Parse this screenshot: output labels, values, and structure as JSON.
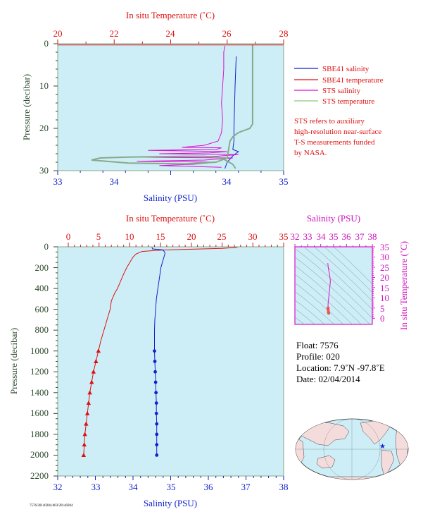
{
  "colors": {
    "red": "#dd1111",
    "blue": "#1122cc",
    "magenta": "#dd11cc",
    "green": "#88cc77",
    "dark_green": "#2e4a2e",
    "panel_bg": "#cdeef7",
    "grey_green": "#88aa88"
  },
  "chart_data": [
    {
      "type": "line",
      "name": "upper-profile",
      "top_axis_label": "In situ Temperature (˚C)",
      "top_ticks": [
        "20",
        "22",
        "24",
        "26",
        "28"
      ],
      "top_range": [
        20,
        28
      ],
      "bottom_axis_label": "Salinity (PSU)",
      "bottom_ticks": [
        "33",
        "34",
        "34",
        "35"
      ],
      "bottom_range": [
        33,
        35
      ],
      "ylabel": "Pressure (decibar)",
      "y_ticks": [
        "0",
        "10",
        "20",
        "30"
      ],
      "ylim": [
        0,
        30
      ],
      "legend": [
        {
          "label": "SBE41 salinity",
          "color": "#1122cc"
        },
        {
          "label": "SBE41 temperature",
          "color": "#dd1111"
        },
        {
          "label": "STS salinity",
          "color": "#dd11cc"
        },
        {
          "label": "STS temperature",
          "color": "#88cc77"
        }
      ],
      "note": [
        "STS refers to auxiliary",
        "high-resolution near-surface",
        "T-S measurements funded",
        "by NASA."
      ],
      "series": [
        {
          "name": "SBE41 salinity",
          "axis": "salinity",
          "points": [
            [
              34.58,
              3
            ],
            [
              34.57,
              10
            ],
            [
              34.56,
              20
            ],
            [
              34.56,
              23
            ],
            [
              34.55,
              25
            ],
            [
              34.6,
              25.5
            ],
            [
              34.55,
              26.5
            ],
            [
              34.5,
              28
            ],
            [
              34.48,
              29.5
            ]
          ]
        },
        {
          "name": "STS salinity",
          "axis": "salinity",
          "points": [
            [
              34.48,
              0.5
            ],
            [
              34.47,
              2
            ],
            [
              34.47,
              6
            ],
            [
              34.46,
              10
            ],
            [
              34.45,
              14
            ],
            [
              34.46,
              18
            ],
            [
              34.45,
              21
            ],
            [
              34.42,
              23
            ],
            [
              34.3,
              24
            ],
            [
              34.1,
              24.5
            ],
            [
              34.45,
              24.6
            ],
            [
              34.4,
              25
            ],
            [
              33.8,
              25.2
            ],
            [
              34.5,
              25.5
            ],
            [
              34.35,
              25.8
            ],
            [
              33.9,
              26
            ],
            [
              34.6,
              26.2
            ],
            [
              34.4,
              26.6
            ],
            [
              33.6,
              26.8
            ],
            [
              34.55,
              27
            ],
            [
              34.3,
              27.5
            ],
            [
              33.7,
              27.8
            ],
            [
              34.4,
              28
            ],
            [
              34.2,
              28.5
            ],
            [
              33.9,
              28.8
            ],
            [
              34.45,
              29.2
            ]
          ]
        },
        {
          "name": "STS temperature",
          "axis": "temperature",
          "points": [
            [
              26.9,
              0.2
            ],
            [
              26.9,
              5
            ],
            [
              26.9,
              10
            ],
            [
              26.9,
              15
            ],
            [
              26.9,
              19
            ],
            [
              26.8,
              20
            ],
            [
              26.4,
              21
            ],
            [
              26.2,
              22
            ],
            [
              26.1,
              23
            ],
            [
              26.05,
              25
            ],
            [
              26.0,
              27
            ],
            [
              25.6,
              28
            ],
            [
              24.5,
              28.4
            ],
            [
              22.5,
              28.2
            ],
            [
              21.2,
              27.5
            ],
            [
              21.5,
              27
            ],
            [
              22.5,
              26.8
            ],
            [
              24.5,
              26.6
            ],
            [
              25.2,
              26.6
            ],
            [
              25.8,
              27
            ],
            [
              26.2,
              28.5
            ],
            [
              26.3,
              29.5
            ]
          ]
        },
        {
          "name": "SBE41 temperature",
          "axis": "temperature",
          "points": [
            [
              20,
              0.3
            ],
            [
              28,
              0.3
            ]
          ]
        }
      ]
    },
    {
      "type": "line",
      "name": "main-profile",
      "top_axis_label": "In situ Temperature (˚C)",
      "top_ticks": [
        "0",
        "5",
        "10",
        "15",
        "20",
        "25",
        "30",
        "35"
      ],
      "top_range": [
        0,
        35
      ],
      "bottom_axis_label": "Salinity (PSU)",
      "bottom_ticks": [
        "32",
        "33",
        "34",
        "35",
        "36",
        "37",
        "38"
      ],
      "bottom_range": [
        32,
        38
      ],
      "ylabel": "Pressure (decibar)",
      "y_ticks": [
        "0",
        "200",
        "400",
        "600",
        "800",
        "1000",
        "1200",
        "1400",
        "1600",
        "1800",
        "2000",
        "2200"
      ],
      "ylim": [
        0,
        2200
      ],
      "series": [
        {
          "name": "temperature",
          "axis": "temperature",
          "points": [
            [
              27.5,
              5
            ],
            [
              25,
              15
            ],
            [
              16,
              30
            ],
            [
              14,
              35
            ],
            [
              12,
              45
            ],
            [
              11,
              70
            ],
            [
              10.5,
              100
            ],
            [
              10,
              150
            ],
            [
              9.5,
              200
            ],
            [
              9,
              260
            ],
            [
              8.5,
              330
            ],
            [
              8,
              400
            ],
            [
              7.5,
              450
            ],
            [
              7,
              520
            ],
            [
              6.8,
              600
            ],
            [
              6.3,
              700
            ],
            [
              5.8,
              800
            ],
            [
              5.3,
              900
            ],
            [
              4.9,
              1000
            ],
            [
              4.5,
              1100
            ],
            [
              4.1,
              1200
            ],
            [
              3.8,
              1300
            ],
            [
              3.5,
              1400
            ],
            [
              3.3,
              1500
            ],
            [
              3.1,
              1600
            ],
            [
              2.9,
              1700
            ],
            [
              2.7,
              1800
            ],
            [
              2.6,
              1900
            ],
            [
              2.5,
              2000
            ]
          ]
        },
        {
          "name": "salinity",
          "axis": "salinity",
          "points": [
            [
              34.5,
              5
            ],
            [
              34.52,
              20
            ],
            [
              34.8,
              30
            ],
            [
              34.85,
              60
            ],
            [
              34.82,
              100
            ],
            [
              34.78,
              150
            ],
            [
              34.74,
              200
            ],
            [
              34.7,
              300
            ],
            [
              34.66,
              400
            ],
            [
              34.62,
              500
            ],
            [
              34.6,
              600
            ],
            [
              34.58,
              700
            ],
            [
              34.57,
              800
            ],
            [
              34.57,
              900
            ],
            [
              34.57,
              1000
            ],
            [
              34.58,
              1100
            ],
            [
              34.59,
              1200
            ],
            [
              34.6,
              1300
            ],
            [
              34.61,
              1400
            ],
            [
              34.62,
              1500
            ],
            [
              34.62,
              1600
            ],
            [
              34.63,
              1700
            ],
            [
              34.63,
              1800
            ],
            [
              34.63,
              1900
            ],
            [
              34.63,
              2000
            ]
          ]
        }
      ]
    },
    {
      "type": "scatter",
      "name": "ts-diagram",
      "top_axis_label": "Salinity (PSU)",
      "top_ticks": [
        "32",
        "33",
        "34",
        "35",
        "36",
        "37",
        "38"
      ],
      "top_range": [
        32,
        38
      ],
      "right_axis_label": "In situ Temperature (˚C)",
      "right_ticks": [
        "35",
        "30",
        "25",
        "20",
        "15",
        "10",
        "5",
        "0"
      ],
      "right_range": [
        -3,
        35
      ],
      "trace": [
        [
          34.62,
          2.5
        ],
        [
          34.6,
          3
        ],
        [
          34.58,
          4
        ],
        [
          34.57,
          5
        ],
        [
          34.57,
          7
        ],
        [
          34.6,
          9
        ],
        [
          34.65,
          12
        ],
        [
          34.7,
          15
        ],
        [
          34.75,
          18
        ],
        [
          34.7,
          21
        ],
        [
          34.6,
          24
        ],
        [
          34.55,
          27
        ]
      ]
    }
  ],
  "info": {
    "float": "Float:  7576",
    "profile": "Profile:  020",
    "location": "Location:  7.9˚N  -97.8˚E",
    "date": "Date:  02/04/2014"
  },
  "footer_text": "7576/20140204.003/20140204"
}
